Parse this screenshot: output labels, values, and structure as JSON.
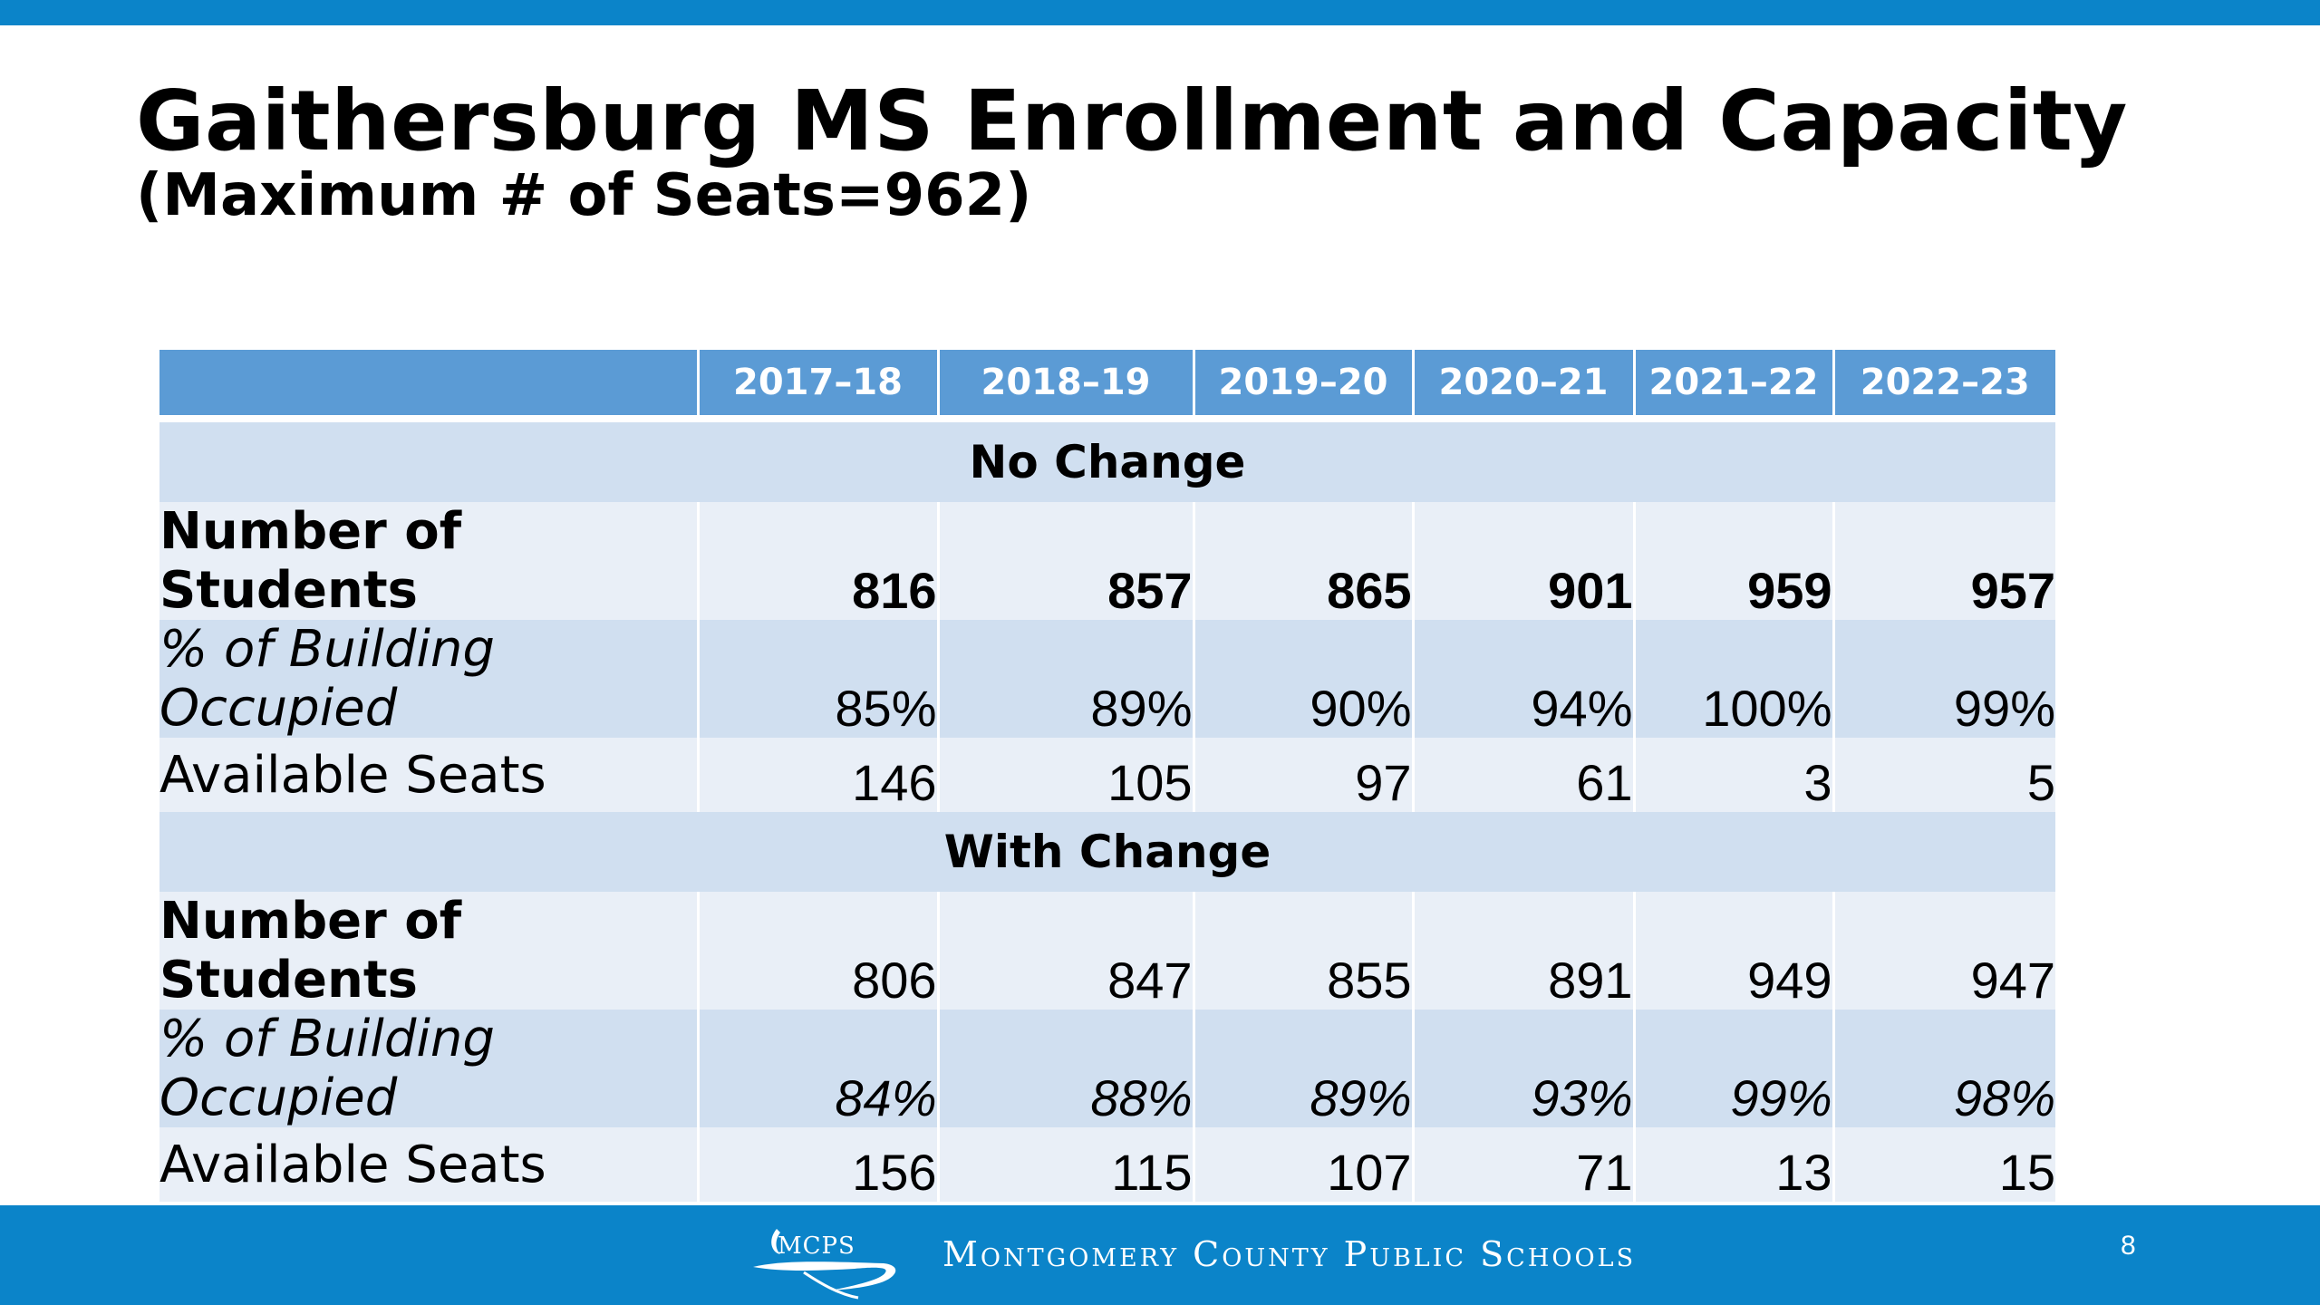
{
  "slide": {
    "title": "Gaithersburg MS Enrollment and Capacity",
    "subtitle": "(Maximum # of Seats=962)",
    "page_number": "8"
  },
  "table": {
    "years": [
      "2017–18",
      "2018–19",
      "2019–20",
      "2020–21",
      "2021–22",
      "2022–23"
    ],
    "sections": [
      {
        "heading": "No Change",
        "rows": [
          {
            "label": "Number of Students",
            "values": [
              "816",
              "857",
              "865",
              "901",
              "959",
              "957"
            ]
          },
          {
            "label": "% of Building Occupied",
            "values": [
              "85%",
              "89%",
              "90%",
              "94%",
              "100%",
              "99%"
            ]
          },
          {
            "label": "Available Seats",
            "values": [
              "146",
              "105",
              "97",
              "61",
              "3",
              "5"
            ]
          }
        ]
      },
      {
        "heading": "With Change",
        "rows": [
          {
            "label": "Number of Students",
            "values": [
              "806",
              "847",
              "855",
              "891",
              "949",
              "947"
            ]
          },
          {
            "label": "% of Building Occupied",
            "values": [
              "84%",
              "88%",
              "89%",
              "93%",
              "99%",
              "98%"
            ]
          },
          {
            "label": "Available Seats",
            "values": [
              "156",
              "115",
              "107",
              "71",
              "13",
              "15"
            ]
          }
        ]
      }
    ]
  },
  "footer": {
    "logo_text": "MCPS",
    "org_name": "Montgomery County Public Schools"
  },
  "colors": {
    "brand_blue": "#0b84c9",
    "header_blue": "#5b9bd5",
    "band_dark": "#d0dff0",
    "band_light": "#e9eff7"
  }
}
